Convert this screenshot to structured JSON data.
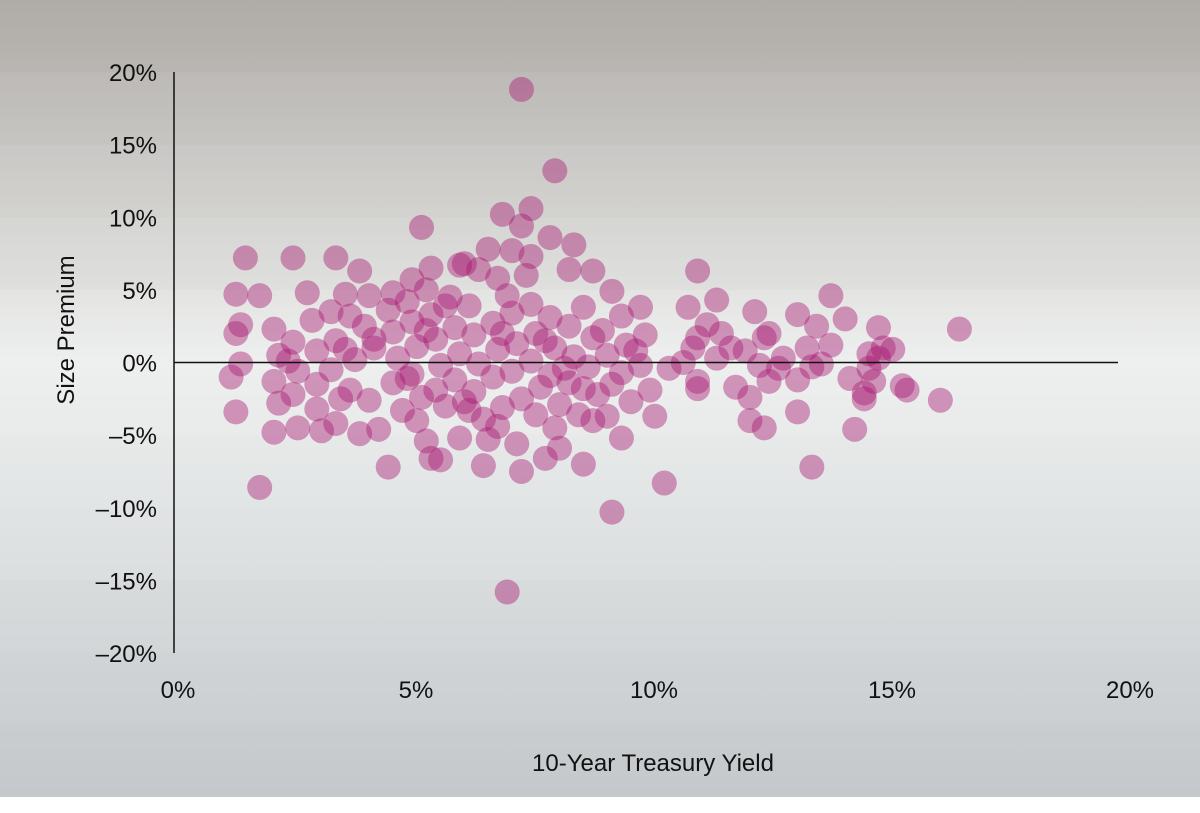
{
  "colors": {
    "point": "#a8156f",
    "axis": "#111111",
    "band_top": "#b9b5b0",
    "band_mid": "#eceeed",
    "band_bottom": "#cbcfd2"
  },
  "chart_data": {
    "type": "scatter",
    "title": "",
    "xlabel": "10-Year Treasury Yield",
    "ylabel": "Size Premium",
    "xlim": [
      0,
      20
    ],
    "ylim": [
      -20,
      20
    ],
    "x_ticks": [
      {
        "value": 0,
        "label": "0%"
      },
      {
        "value": 5,
        "label": "5%"
      },
      {
        "value": 10,
        "label": "10%"
      },
      {
        "value": 15,
        "label": "15%"
      },
      {
        "value": 20,
        "label": "20%"
      }
    ],
    "y_ticks": [
      {
        "value": 20,
        "label": "20%"
      },
      {
        "value": 15,
        "label": "15%"
      },
      {
        "value": 10,
        "label": "10%"
      },
      {
        "value": 5,
        "label": "5%"
      },
      {
        "value": 0,
        "label": "0%"
      },
      {
        "value": -5,
        "label": "–5%"
      },
      {
        "value": -10,
        "label": "–10%"
      },
      {
        "value": -15,
        "label": "–15%"
      },
      {
        "value": -20,
        "label": "–20%"
      }
    ],
    "grid": false,
    "points": [
      {
        "x": 7.3,
        "y": 18.8
      },
      {
        "x": 8.0,
        "y": 13.2
      },
      {
        "x": 7.5,
        "y": 10.6
      },
      {
        "x": 6.9,
        "y": 10.2
      },
      {
        "x": 5.2,
        "y": 9.3
      },
      {
        "x": 7.3,
        "y": 9.4
      },
      {
        "x": 7.9,
        "y": 8.6
      },
      {
        "x": 8.4,
        "y": 8.1
      },
      {
        "x": 6.6,
        "y": 7.8
      },
      {
        "x": 7.1,
        "y": 7.7
      },
      {
        "x": 7.5,
        "y": 7.3
      },
      {
        "x": 1.5,
        "y": 7.2
      },
      {
        "x": 2.5,
        "y": 7.2
      },
      {
        "x": 3.4,
        "y": 7.2
      },
      {
        "x": 6.1,
        "y": 6.8
      },
      {
        "x": 6.4,
        "y": 6.4
      },
      {
        "x": 8.3,
        "y": 6.4
      },
      {
        "x": 8.8,
        "y": 6.3
      },
      {
        "x": 3.9,
        "y": 6.3
      },
      {
        "x": 5.4,
        "y": 6.5
      },
      {
        "x": 11.0,
        "y": 6.3
      },
      {
        "x": 7.4,
        "y": 6.0
      },
      {
        "x": 6.8,
        "y": 5.8
      },
      {
        "x": 5.0,
        "y": 5.7
      },
      {
        "x": 1.3,
        "y": 4.7
      },
      {
        "x": 1.8,
        "y": 4.6
      },
      {
        "x": 2.8,
        "y": 4.8
      },
      {
        "x": 3.6,
        "y": 4.7
      },
      {
        "x": 4.1,
        "y": 4.6
      },
      {
        "x": 4.6,
        "y": 4.8
      },
      {
        "x": 5.3,
        "y": 5.0
      },
      {
        "x": 7.0,
        "y": 4.6
      },
      {
        "x": 9.2,
        "y": 4.9
      },
      {
        "x": 13.8,
        "y": 4.6
      },
      {
        "x": 11.4,
        "y": 4.3
      },
      {
        "x": 10.8,
        "y": 3.8
      },
      {
        "x": 12.2,
        "y": 3.5
      },
      {
        "x": 13.1,
        "y": 3.3
      },
      {
        "x": 14.1,
        "y": 3.0
      },
      {
        "x": 13.5,
        "y": 2.5
      },
      {
        "x": 14.8,
        "y": 2.4
      },
      {
        "x": 16.5,
        "y": 2.3
      },
      {
        "x": 12.5,
        "y": 2.0
      },
      {
        "x": 11.0,
        "y": 1.7
      },
      {
        "x": 13.8,
        "y": 1.2
      },
      {
        "x": 15.1,
        "y": 0.9
      },
      {
        "x": 14.6,
        "y": 0.6
      },
      {
        "x": 12.8,
        "y": 0.3
      },
      {
        "x": 1.3,
        "y": 2.0
      },
      {
        "x": 1.4,
        "y": 2.6
      },
      {
        "x": 1.4,
        "y": -0.1
      },
      {
        "x": 1.2,
        "y": -1.0
      },
      {
        "x": 1.3,
        "y": -3.4
      },
      {
        "x": 1.8,
        "y": -8.6
      },
      {
        "x": 2.1,
        "y": 2.3
      },
      {
        "x": 2.2,
        "y": 0.5
      },
      {
        "x": 2.1,
        "y": -1.3
      },
      {
        "x": 2.2,
        "y": -2.8
      },
      {
        "x": 2.1,
        "y": -4.8
      },
      {
        "x": 2.5,
        "y": 1.4
      },
      {
        "x": 2.6,
        "y": -0.6
      },
      {
        "x": 2.5,
        "y": -2.2
      },
      {
        "x": 2.6,
        "y": -4.5
      },
      {
        "x": 2.9,
        "y": 2.9
      },
      {
        "x": 3.0,
        "y": 0.8
      },
      {
        "x": 3.0,
        "y": -1.5
      },
      {
        "x": 3.0,
        "y": -3.2
      },
      {
        "x": 3.1,
        "y": -4.7
      },
      {
        "x": 3.3,
        "y": 3.5
      },
      {
        "x": 3.4,
        "y": 1.5
      },
      {
        "x": 3.3,
        "y": -0.5
      },
      {
        "x": 3.5,
        "y": -2.5
      },
      {
        "x": 3.4,
        "y": -4.2
      },
      {
        "x": 3.7,
        "y": 3.2
      },
      {
        "x": 3.8,
        "y": 0.2
      },
      {
        "x": 3.7,
        "y": -1.9
      },
      {
        "x": 3.9,
        "y": -4.9
      },
      {
        "x": 4.0,
        "y": 2.5
      },
      {
        "x": 4.2,
        "y": 1.0
      },
      {
        "x": 4.1,
        "y": -2.6
      },
      {
        "x": 4.3,
        "y": -4.6
      },
      {
        "x": 4.5,
        "y": -7.2
      },
      {
        "x": 4.5,
        "y": 3.6
      },
      {
        "x": 4.6,
        "y": 2.1
      },
      {
        "x": 4.7,
        "y": 0.3
      },
      {
        "x": 4.6,
        "y": -1.4
      },
      {
        "x": 4.8,
        "y": -3.3
      },
      {
        "x": 4.9,
        "y": 4.2
      },
      {
        "x": 5.0,
        "y": 2.8
      },
      {
        "x": 5.1,
        "y": 1.1
      },
      {
        "x": 5.0,
        "y": -0.8
      },
      {
        "x": 5.2,
        "y": -2.4
      },
      {
        "x": 5.1,
        "y": -4.0
      },
      {
        "x": 5.3,
        "y": -5.4
      },
      {
        "x": 5.4,
        "y": -6.6
      },
      {
        "x": 5.6,
        "y": -6.7
      },
      {
        "x": 5.4,
        "y": 3.3
      },
      {
        "x": 5.5,
        "y": 1.6
      },
      {
        "x": 5.6,
        "y": -0.2
      },
      {
        "x": 5.5,
        "y": -1.9
      },
      {
        "x": 5.7,
        "y": -3.0
      },
      {
        "x": 5.8,
        "y": 4.5
      },
      {
        "x": 5.9,
        "y": 2.4
      },
      {
        "x": 6.0,
        "y": 0.6
      },
      {
        "x": 5.9,
        "y": -1.2
      },
      {
        "x": 6.1,
        "y": -2.7
      },
      {
        "x": 6.0,
        "y": -5.2
      },
      {
        "x": 6.2,
        "y": 3.9
      },
      {
        "x": 6.3,
        "y": 1.9
      },
      {
        "x": 6.4,
        "y": -0.1
      },
      {
        "x": 6.3,
        "y": -2.0
      },
      {
        "x": 6.5,
        "y": -3.9
      },
      {
        "x": 6.6,
        "y": -5.3
      },
      {
        "x": 6.5,
        "y": -7.1
      },
      {
        "x": 6.7,
        "y": 2.7
      },
      {
        "x": 6.8,
        "y": 0.9
      },
      {
        "x": 6.7,
        "y": -1.0
      },
      {
        "x": 6.9,
        "y": -3.1
      },
      {
        "x": 6.8,
        "y": -4.4
      },
      {
        "x": 7.0,
        "y": -15.8
      },
      {
        "x": 7.1,
        "y": 3.4
      },
      {
        "x": 7.2,
        "y": 1.3
      },
      {
        "x": 7.1,
        "y": -0.6
      },
      {
        "x": 7.3,
        "y": -2.5
      },
      {
        "x": 7.2,
        "y": -5.6
      },
      {
        "x": 7.3,
        "y": -7.5
      },
      {
        "x": 7.5,
        "y": 4.0
      },
      {
        "x": 7.6,
        "y": 2.0
      },
      {
        "x": 7.5,
        "y": 0.1
      },
      {
        "x": 7.7,
        "y": -1.7
      },
      {
        "x": 7.6,
        "y": -3.6
      },
      {
        "x": 7.8,
        "y": -6.6
      },
      {
        "x": 7.9,
        "y": 3.1
      },
      {
        "x": 8.0,
        "y": 1.0
      },
      {
        "x": 7.9,
        "y": -0.9
      },
      {
        "x": 8.1,
        "y": -2.9
      },
      {
        "x": 8.0,
        "y": -4.5
      },
      {
        "x": 8.1,
        "y": -5.9
      },
      {
        "x": 8.3,
        "y": 2.5
      },
      {
        "x": 8.4,
        "y": 0.4
      },
      {
        "x": 8.3,
        "y": -1.4
      },
      {
        "x": 8.5,
        "y": -3.6
      },
      {
        "x": 8.6,
        "y": -7.0
      },
      {
        "x": 8.6,
        "y": 3.8
      },
      {
        "x": 8.8,
        "y": 1.7
      },
      {
        "x": 8.7,
        "y": -0.3
      },
      {
        "x": 8.9,
        "y": -2.2
      },
      {
        "x": 8.8,
        "y": -4.0
      },
      {
        "x": 9.0,
        "y": 2.2
      },
      {
        "x": 9.1,
        "y": 0.5
      },
      {
        "x": 9.2,
        "y": -1.5
      },
      {
        "x": 9.1,
        "y": -3.7
      },
      {
        "x": 9.2,
        "y": -10.3
      },
      {
        "x": 9.4,
        "y": 3.2
      },
      {
        "x": 9.5,
        "y": 1.2
      },
      {
        "x": 9.4,
        "y": -0.7
      },
      {
        "x": 9.6,
        "y": -2.7
      },
      {
        "x": 9.4,
        "y": -5.2
      },
      {
        "x": 9.8,
        "y": 3.8
      },
      {
        "x": 9.9,
        "y": 1.9
      },
      {
        "x": 9.8,
        "y": -0.2
      },
      {
        "x": 10.0,
        "y": -1.9
      },
      {
        "x": 10.1,
        "y": -3.7
      },
      {
        "x": 10.3,
        "y": -8.3
      },
      {
        "x": 10.4,
        "y": -0.4
      },
      {
        "x": 10.7,
        "y": 0.0
      },
      {
        "x": 10.9,
        "y": 1.0
      },
      {
        "x": 11.0,
        "y": -1.3
      },
      {
        "x": 11.0,
        "y": -1.8
      },
      {
        "x": 11.2,
        "y": 2.6
      },
      {
        "x": 11.4,
        "y": 0.3
      },
      {
        "x": 11.5,
        "y": 2.0
      },
      {
        "x": 11.7,
        "y": 1.0
      },
      {
        "x": 11.8,
        "y": -1.7
      },
      {
        "x": 12.0,
        "y": 0.8
      },
      {
        "x": 12.1,
        "y": -2.4
      },
      {
        "x": 12.1,
        "y": -4.0
      },
      {
        "x": 12.3,
        "y": -0.2
      },
      {
        "x": 12.4,
        "y": 1.7
      },
      {
        "x": 12.4,
        "y": -4.5
      },
      {
        "x": 12.5,
        "y": -1.3
      },
      {
        "x": 12.7,
        "y": -0.4
      },
      {
        "x": 13.1,
        "y": -1.2
      },
      {
        "x": 13.1,
        "y": -3.4
      },
      {
        "x": 13.3,
        "y": 1.0
      },
      {
        "x": 13.4,
        "y": -7.2
      },
      {
        "x": 13.4,
        "y": -0.3
      },
      {
        "x": 13.6,
        "y": -0.1
      },
      {
        "x": 14.2,
        "y": -1.1
      },
      {
        "x": 14.3,
        "y": -4.6
      },
      {
        "x": 14.5,
        "y": -2.1
      },
      {
        "x": 14.5,
        "y": -2.5
      },
      {
        "x": 14.6,
        "y": -0.4
      },
      {
        "x": 14.7,
        "y": -1.3
      },
      {
        "x": 14.8,
        "y": 0.3
      },
      {
        "x": 14.9,
        "y": 1.0
      },
      {
        "x": 15.3,
        "y": -1.6
      },
      {
        "x": 15.4,
        "y": -1.9
      },
      {
        "x": 16.1,
        "y": -2.6
      },
      {
        "x": 6.0,
        "y": 6.7
      },
      {
        "x": 4.2,
        "y": 1.6
      },
      {
        "x": 5.7,
        "y": 3.9
      },
      {
        "x": 6.9,
        "y": 2.0
      },
      {
        "x": 8.2,
        "y": -0.4
      },
      {
        "x": 4.9,
        "y": -1.1
      },
      {
        "x": 3.6,
        "y": 0.9
      },
      {
        "x": 2.4,
        "y": 0.1
      },
      {
        "x": 7.8,
        "y": 1.5
      },
      {
        "x": 9.7,
        "y": 0.8
      },
      {
        "x": 6.2,
        "y": -3.3
      },
      {
        "x": 5.3,
        "y": 2.2
      },
      {
        "x": 8.6,
        "y": -1.8
      }
    ]
  }
}
